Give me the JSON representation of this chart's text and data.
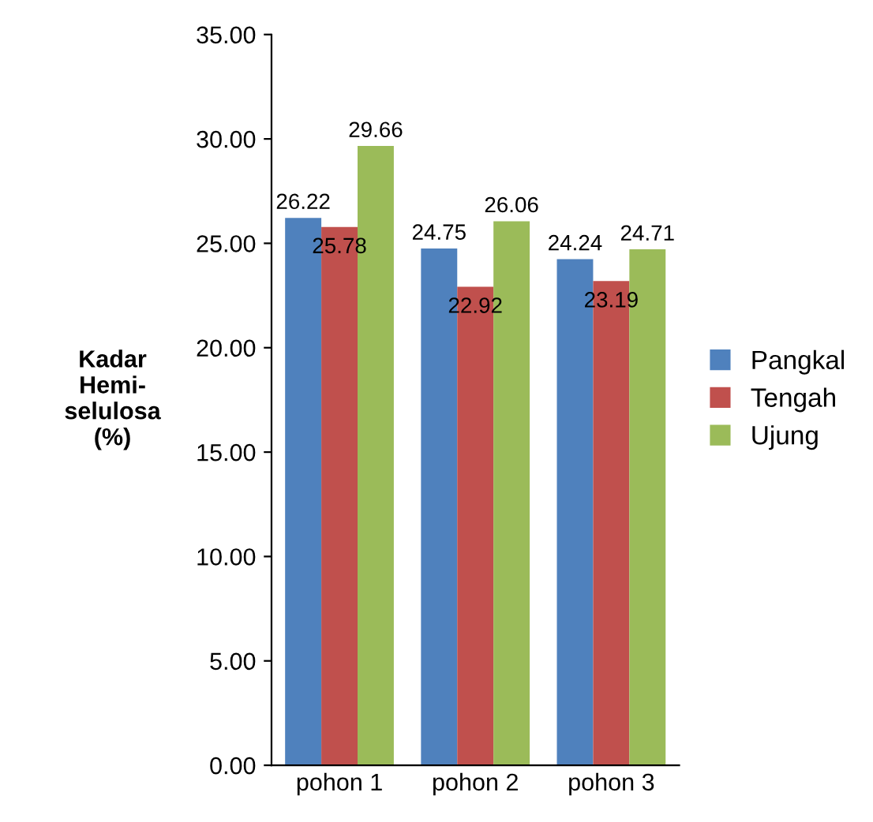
{
  "chart_data": {
    "type": "bar",
    "ylabel": "Kadar\nHemi-\nselulosa\n(%)",
    "categories": [
      "pohon 1",
      "pohon 2",
      "pohon 3"
    ],
    "series": [
      {
        "name": "Pangkal",
        "color": "#4f81bd",
        "values": [
          26.22,
          24.75,
          24.24
        ]
      },
      {
        "name": "Tengah",
        "color": "#c0504d",
        "values": [
          25.78,
          22.92,
          23.19
        ]
      },
      {
        "name": "Ujung",
        "color": "#9bbb59",
        "values": [
          29.66,
          26.06,
          24.71
        ]
      }
    ],
    "ylim": [
      0,
      35
    ],
    "yticks": [
      {
        "value": 0,
        "label": "0.00"
      },
      {
        "value": 5,
        "label": "5.00"
      },
      {
        "value": 10,
        "label": "10.00"
      },
      {
        "value": 15,
        "label": "15.00"
      },
      {
        "value": 20,
        "label": "20.00"
      },
      {
        "value": 25,
        "label": "25.00"
      },
      {
        "value": 30,
        "label": "30.00"
      },
      {
        "value": 35,
        "label": "35.00"
      }
    ],
    "grid": false,
    "legend": "right",
    "data_labels": true
  }
}
